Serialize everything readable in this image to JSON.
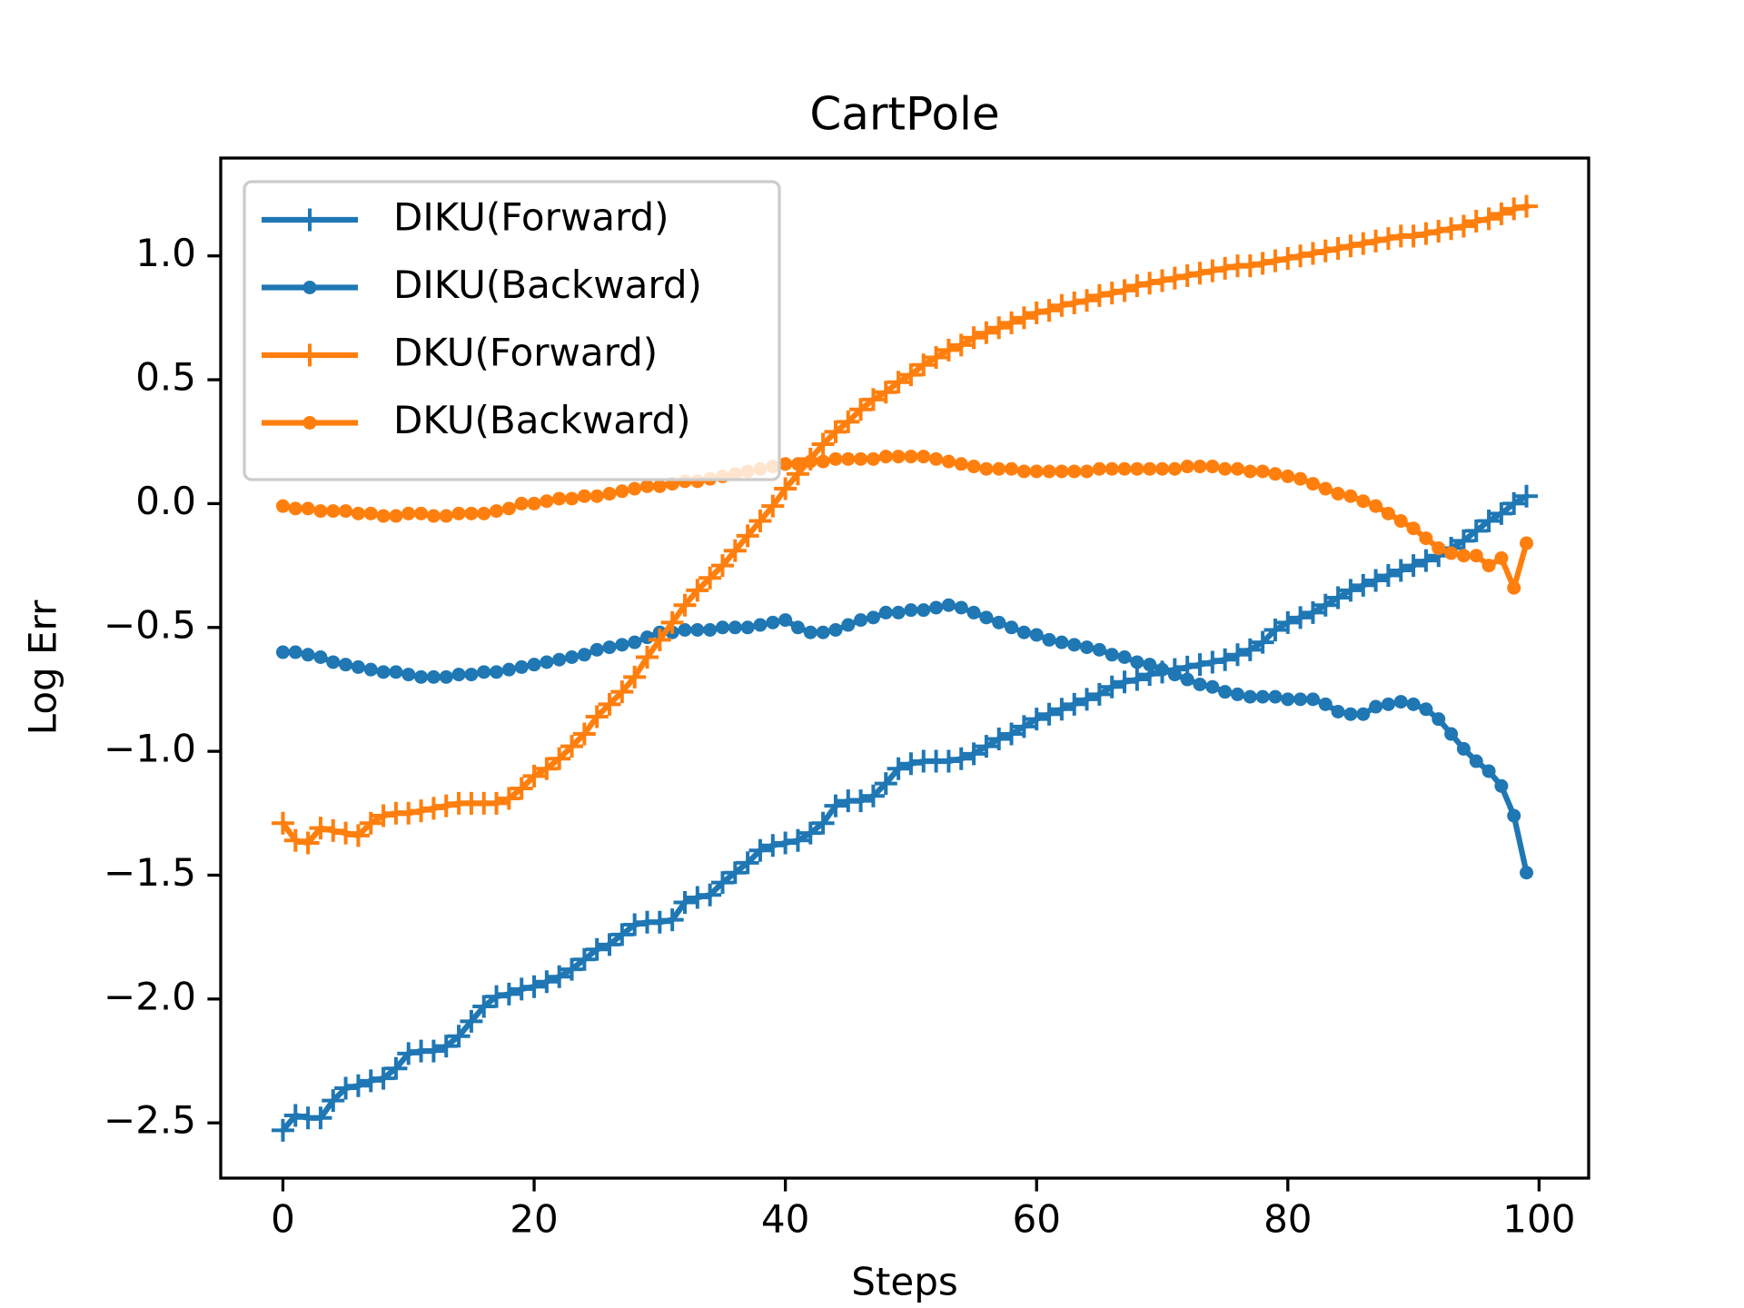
{
  "chart_data": {
    "type": "line",
    "title": "CartPole",
    "x_label": "Steps",
    "y_label": "Log Err",
    "x": [
      0,
      1,
      2,
      3,
      4,
      5,
      6,
      7,
      8,
      9,
      10,
      11,
      12,
      13,
      14,
      15,
      16,
      17,
      18,
      19,
      20,
      21,
      22,
      23,
      24,
      25,
      26,
      27,
      28,
      29,
      30,
      31,
      32,
      33,
      34,
      35,
      36,
      37,
      38,
      39,
      40,
      41,
      42,
      43,
      44,
      45,
      46,
      47,
      48,
      49,
      50,
      51,
      52,
      53,
      54,
      55,
      56,
      57,
      58,
      59,
      60,
      61,
      62,
      63,
      64,
      65,
      66,
      67,
      68,
      69,
      70,
      71,
      72,
      73,
      74,
      75,
      76,
      77,
      78,
      79,
      80,
      81,
      82,
      83,
      84,
      85,
      86,
      87,
      88,
      89,
      90,
      91,
      92,
      93,
      94,
      95,
      96,
      97,
      98,
      99
    ],
    "series": [
      {
        "name": "DIKU(Forward)",
        "color": "#1f77b4",
        "marker": "+",
        "values": [
          -2.53,
          -2.47,
          -2.48,
          -2.48,
          -2.41,
          -2.36,
          -2.35,
          -2.33,
          -2.32,
          -2.28,
          -2.22,
          -2.21,
          -2.21,
          -2.19,
          -2.15,
          -2.09,
          -2.03,
          -1.99,
          -1.98,
          -1.96,
          -1.95,
          -1.93,
          -1.91,
          -1.88,
          -1.84,
          -1.8,
          -1.78,
          -1.74,
          -1.7,
          -1.69,
          -1.69,
          -1.68,
          -1.61,
          -1.59,
          -1.58,
          -1.53,
          -1.49,
          -1.45,
          -1.4,
          -1.38,
          -1.37,
          -1.36,
          -1.33,
          -1.29,
          -1.22,
          -1.2,
          -1.2,
          -1.18,
          -1.13,
          -1.07,
          -1.05,
          -1.04,
          -1.04,
          -1.04,
          -1.03,
          -1.01,
          -0.98,
          -0.95,
          -0.93,
          -0.9,
          -0.87,
          -0.85,
          -0.83,
          -0.81,
          -0.79,
          -0.77,
          -0.74,
          -0.72,
          -0.71,
          -0.69,
          -0.68,
          -0.67,
          -0.66,
          -0.65,
          -0.64,
          -0.63,
          -0.61,
          -0.59,
          -0.56,
          -0.51,
          -0.48,
          -0.46,
          -0.44,
          -0.41,
          -0.38,
          -0.35,
          -0.33,
          -0.31,
          -0.29,
          -0.27,
          -0.25,
          -0.23,
          -0.21,
          -0.18,
          -0.15,
          -0.11,
          -0.07,
          -0.04,
          0.0,
          0.03
        ]
      },
      {
        "name": "DIKU(Backward)",
        "color": "#1f77b4",
        "marker": ".",
        "values": [
          -0.6,
          -0.6,
          -0.61,
          -0.62,
          -0.64,
          -0.65,
          -0.66,
          -0.67,
          -0.68,
          -0.68,
          -0.69,
          -0.7,
          -0.7,
          -0.7,
          -0.69,
          -0.69,
          -0.68,
          -0.68,
          -0.67,
          -0.66,
          -0.65,
          -0.64,
          -0.63,
          -0.62,
          -0.61,
          -0.59,
          -0.58,
          -0.57,
          -0.56,
          -0.54,
          -0.52,
          -0.52,
          -0.51,
          -0.51,
          -0.51,
          -0.5,
          -0.5,
          -0.5,
          -0.49,
          -0.48,
          -0.47,
          -0.5,
          -0.52,
          -0.52,
          -0.51,
          -0.49,
          -0.47,
          -0.46,
          -0.44,
          -0.44,
          -0.43,
          -0.43,
          -0.42,
          -0.41,
          -0.42,
          -0.44,
          -0.46,
          -0.48,
          -0.5,
          -0.52,
          -0.53,
          -0.55,
          -0.56,
          -0.57,
          -0.58,
          -0.59,
          -0.61,
          -0.62,
          -0.64,
          -0.65,
          -0.67,
          -0.69,
          -0.71,
          -0.73,
          -0.74,
          -0.76,
          -0.77,
          -0.78,
          -0.78,
          -0.78,
          -0.79,
          -0.79,
          -0.79,
          -0.81,
          -0.84,
          -0.85,
          -0.85,
          -0.82,
          -0.81,
          -0.8,
          -0.81,
          -0.83,
          -0.87,
          -0.93,
          -0.99,
          -1.04,
          -1.08,
          -1.14,
          -1.26,
          -1.49
        ]
      },
      {
        "name": "DKU(Forward)",
        "color": "#ff7f0e",
        "marker": "+",
        "values": [
          -1.29,
          -1.36,
          -1.37,
          -1.31,
          -1.32,
          -1.33,
          -1.34,
          -1.29,
          -1.26,
          -1.25,
          -1.25,
          -1.24,
          -1.23,
          -1.22,
          -1.21,
          -1.21,
          -1.21,
          -1.21,
          -1.19,
          -1.15,
          -1.1,
          -1.07,
          -1.03,
          -0.98,
          -0.93,
          -0.86,
          -0.81,
          -0.76,
          -0.7,
          -0.62,
          -0.55,
          -0.48,
          -0.41,
          -0.35,
          -0.3,
          -0.25,
          -0.19,
          -0.13,
          -0.07,
          -0.01,
          0.06,
          0.12,
          0.18,
          0.24,
          0.29,
          0.33,
          0.38,
          0.42,
          0.45,
          0.49,
          0.52,
          0.56,
          0.59,
          0.62,
          0.64,
          0.67,
          0.69,
          0.71,
          0.73,
          0.75,
          0.77,
          0.78,
          0.8,
          0.81,
          0.82,
          0.84,
          0.85,
          0.86,
          0.88,
          0.89,
          0.9,
          0.91,
          0.92,
          0.93,
          0.94,
          0.95,
          0.96,
          0.96,
          0.97,
          0.98,
          0.99,
          1.0,
          1.01,
          1.02,
          1.03,
          1.04,
          1.05,
          1.06,
          1.07,
          1.08,
          1.08,
          1.09,
          1.1,
          1.11,
          1.12,
          1.14,
          1.15,
          1.17,
          1.19,
          1.2
        ]
      },
      {
        "name": "DKU(Backward)",
        "color": "#ff7f0e",
        "marker": ".",
        "values": [
          -0.01,
          -0.02,
          -0.02,
          -0.03,
          -0.03,
          -0.03,
          -0.04,
          -0.04,
          -0.05,
          -0.05,
          -0.04,
          -0.04,
          -0.05,
          -0.05,
          -0.04,
          -0.04,
          -0.04,
          -0.03,
          -0.02,
          0.0,
          0.0,
          0.01,
          0.02,
          0.02,
          0.03,
          0.03,
          0.04,
          0.05,
          0.06,
          0.07,
          0.07,
          0.08,
          0.09,
          0.09,
          0.1,
          0.11,
          0.12,
          0.13,
          0.14,
          0.15,
          0.16,
          0.16,
          0.17,
          0.17,
          0.18,
          0.18,
          0.18,
          0.18,
          0.19,
          0.19,
          0.19,
          0.19,
          0.18,
          0.17,
          0.16,
          0.15,
          0.14,
          0.14,
          0.14,
          0.13,
          0.13,
          0.13,
          0.13,
          0.13,
          0.13,
          0.14,
          0.14,
          0.14,
          0.14,
          0.14,
          0.14,
          0.14,
          0.15,
          0.15,
          0.15,
          0.14,
          0.14,
          0.13,
          0.13,
          0.12,
          0.11,
          0.1,
          0.08,
          0.06,
          0.04,
          0.03,
          0.01,
          -0.01,
          -0.04,
          -0.07,
          -0.1,
          -0.14,
          -0.18,
          -0.2,
          -0.21,
          -0.21,
          -0.25,
          -0.22,
          -0.34,
          -0.16
        ]
      }
    ],
    "xlim": [
      -4.95,
      103.95
    ],
    "xticks": [
      0,
      20,
      40,
      60,
      80,
      100
    ],
    "ylim": [
      -2.723,
      1.395
    ],
    "yticks": [
      {
        "value": -2.5,
        "label": "−2.5"
      },
      {
        "value": -2.0,
        "label": "−2.0"
      },
      {
        "value": -1.5,
        "label": "−1.5"
      },
      {
        "value": -1.0,
        "label": "−1.0"
      },
      {
        "value": -0.5,
        "label": "−0.5"
      },
      {
        "value": 0.0,
        "label": "0.0"
      },
      0.5,
      {
        "value": 1.0,
        "label": "1.0"
      }
    ],
    "legend": "upper left",
    "grid": false
  }
}
